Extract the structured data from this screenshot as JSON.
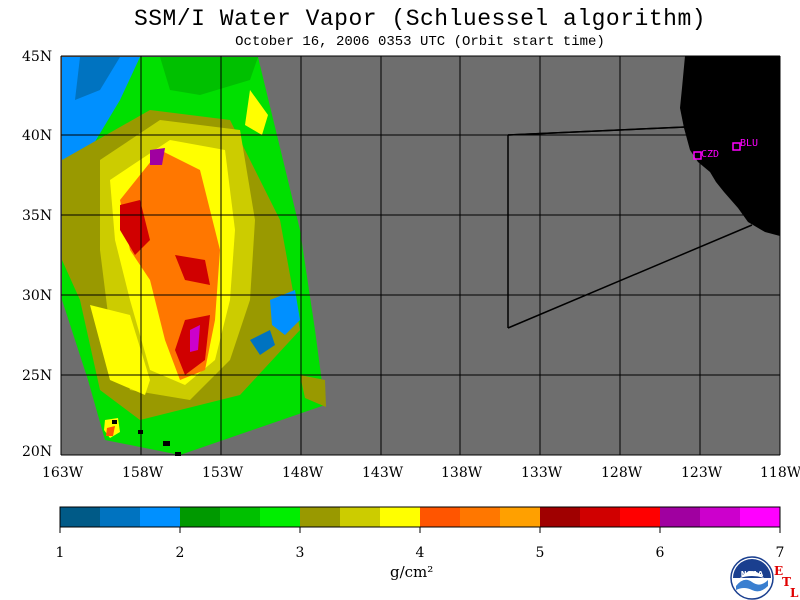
{
  "title": "SSM/I Water Vapor (Schluessel algorithm)",
  "subtitle": "October 16, 2006  0353 UTC  (Orbit start time)",
  "map": {
    "lat_labels": [
      "45N",
      "40N",
      "35N",
      "30N",
      "25N",
      "20N"
    ],
    "lon_labels": [
      "163W",
      "158W",
      "153W",
      "148W",
      "143W",
      "138W",
      "133W",
      "128W",
      "123W",
      "118W"
    ],
    "stations": [
      {
        "id": "CZD",
        "label": "CZD"
      },
      {
        "id": "BLU",
        "label": "BLU"
      }
    ],
    "colors": {
      "ocean_gray": "#6e6e6e",
      "land": "#000000",
      "grid": "#000000",
      "station": "#ff00ff"
    }
  },
  "colorbar": {
    "tick_labels": [
      "1",
      "2",
      "3",
      "4",
      "5",
      "6",
      "7"
    ],
    "colors": [
      "#005a87",
      "#0073c0",
      "#0090ff",
      "#009900",
      "#00c000",
      "#00ee00",
      "#999900",
      "#cccc00",
      "#ffff00",
      "#ff5500",
      "#ff7700",
      "#ffa000",
      "#a00000",
      "#d00000",
      "#ff0000",
      "#a000a0",
      "#cc00cc",
      "#ff00ff"
    ],
    "unit_label": "g/cm²"
  },
  "logo": {
    "name": "NOAA",
    "etl_letters": [
      "E",
      "T",
      "L"
    ]
  }
}
